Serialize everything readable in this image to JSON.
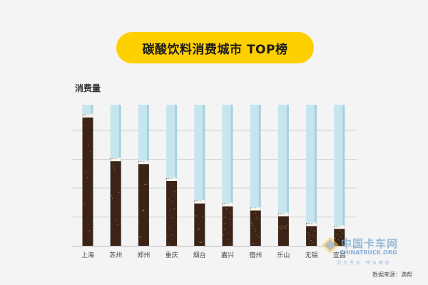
{
  "chart_data": {
    "type": "bar",
    "title": "碳酸饮料消费城市 TOP榜",
    "ylabel": "消费量",
    "categories": [
      "上海",
      "苏州",
      "郑州",
      "重庆",
      "烟台",
      "嘉兴",
      "宿州",
      "乐山",
      "无锡",
      "宜昌"
    ],
    "values": [
      93,
      62,
      60,
      48,
      32,
      30,
      27,
      23,
      16,
      14
    ],
    "ylim": [
      0,
      100
    ],
    "grid": true,
    "colors": {
      "fill": "#3b2416",
      "foam": "#f7f3ee",
      "glass": "#c6e5ee",
      "glass_edge": "#a6d2df",
      "title_bg": "#ffd000",
      "gridline": "#cfcfcf"
    }
  },
  "source_text": "数据来源：满帮",
  "watermark": {
    "name": "中国卡车网",
    "domain": "CHINATRUCK.ORG",
    "slogan": "因为专业 所以精彩"
  }
}
